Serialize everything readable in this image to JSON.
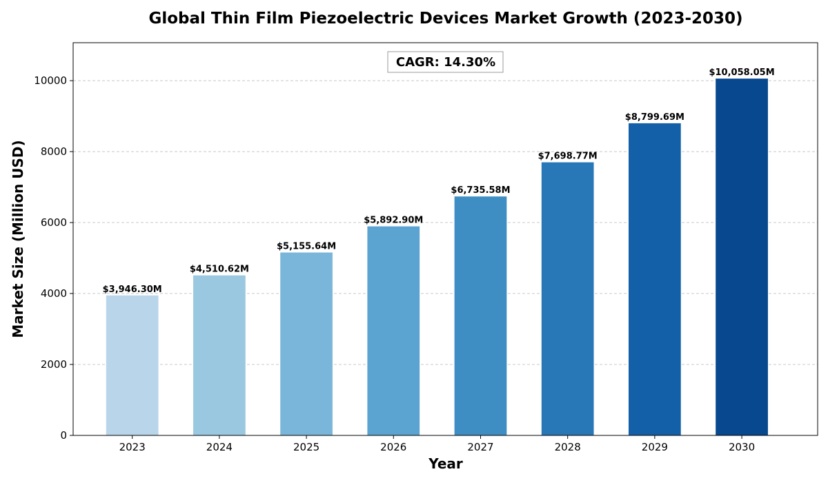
{
  "chart_data": {
    "type": "bar",
    "title": "Global Thin Film Piezoelectric Devices Market Growth (2023-2030)",
    "xlabel": "Year",
    "ylabel": "Market Size (Million USD)",
    "categories": [
      "2023",
      "2024",
      "2025",
      "2026",
      "2027",
      "2028",
      "2029",
      "2030"
    ],
    "values": [
      3946.3,
      4510.62,
      5155.64,
      5892.9,
      6735.58,
      7698.77,
      8799.69,
      10058.05
    ],
    "data_labels": [
      "$3,946.30M",
      "$4,510.62M",
      "$5,155.64M",
      "$5,892.90M",
      "$6,735.58M",
      "$7,698.77M",
      "$8,799.69M",
      "$10,058.05M"
    ],
    "colors": [
      "#b9d5ea",
      "#9ac8e0",
      "#7ab6d9",
      "#5ba3d0",
      "#3e8ec4",
      "#2878b8",
      "#1460a8",
      "#08488e"
    ],
    "ylim": [
      0,
      11070
    ],
    "yticks": [
      0,
      2000,
      4000,
      6000,
      8000,
      10000
    ],
    "grid": true,
    "annotation": "CAGR: 14.30%"
  }
}
